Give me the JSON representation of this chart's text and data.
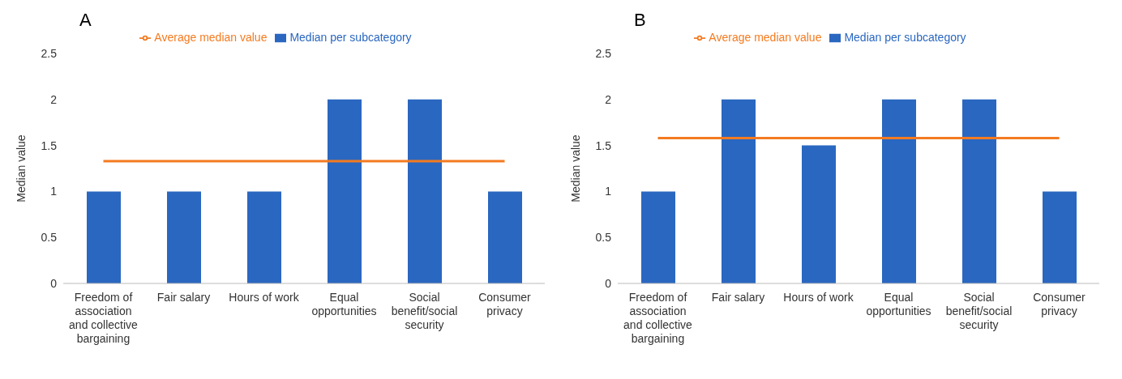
{
  "chart_data": [
    {
      "type": "bar",
      "title": "A",
      "ylabel": "Median value",
      "categories": [
        "Freedom of association and collective bargaining",
        "Fair salary",
        "Hours of work",
        "Equal opportunities",
        "Social benefit/social security",
        "Consumer privacy"
      ],
      "series": [
        {
          "name": "Median per subcategory",
          "color": "#2a67c0",
          "values": [
            1,
            1,
            1,
            2,
            2,
            1
          ]
        },
        {
          "name": "Average median value",
          "type": "line",
          "color": "#f47b20",
          "values": [
            1.33,
            1.33,
            1.33,
            1.33,
            1.33,
            1.33
          ]
        }
      ],
      "ylim": [
        0,
        2.5
      ],
      "yticks": [
        0,
        0.5,
        1,
        1.5,
        2,
        2.5
      ],
      "grid": false,
      "legend": "top"
    },
    {
      "type": "bar",
      "title": "B",
      "ylabel": "Median value",
      "categories": [
        "Freedom of association and collective bargaining",
        "Fair salary",
        "Hours of work",
        "Equal opportunities",
        "Social benefit/social security",
        "Consumer privacy"
      ],
      "series": [
        {
          "name": "Median per subcategory",
          "color": "#2a67c0",
          "values": [
            1,
            2,
            1.5,
            2,
            2,
            1
          ]
        },
        {
          "name": "Average median value",
          "type": "line",
          "color": "#f47b20",
          "values": [
            1.58,
            1.58,
            1.58,
            1.58,
            1.58,
            1.58
          ]
        }
      ],
      "ylim": [
        0,
        2.5
      ],
      "yticks": [
        0,
        0.5,
        1,
        1.5,
        2,
        2.5
      ],
      "grid": false,
      "legend": "top"
    }
  ]
}
